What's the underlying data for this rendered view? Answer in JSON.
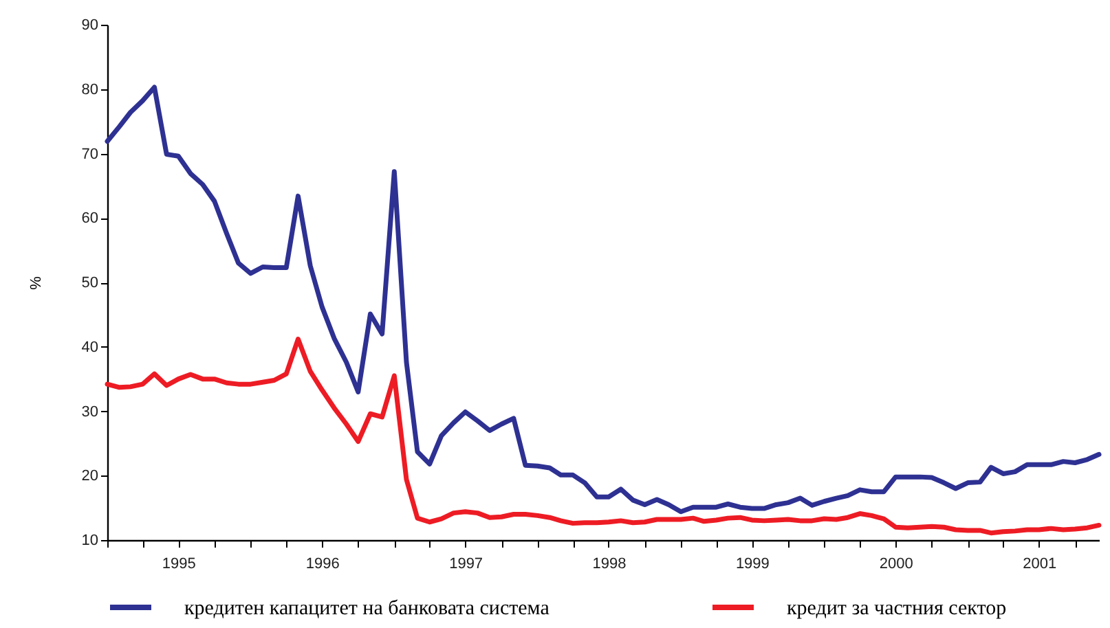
{
  "chart_data": {
    "type": "line",
    "ylabel": "%",
    "x": [
      "1995-01",
      "1995-02",
      "1995-03",
      "1995-04",
      "1995-05",
      "1995-06",
      "1995-07",
      "1995-08",
      "1995-09",
      "1995-10",
      "1995-11",
      "1995-12",
      "1996-01",
      "1996-02",
      "1996-03",
      "1996-04",
      "1996-05",
      "1996-06",
      "1996-07",
      "1996-08",
      "1996-09",
      "1996-10",
      "1996-11",
      "1996-12",
      "1997-01",
      "1997-02",
      "1997-03",
      "1997-04",
      "1997-05",
      "1997-06",
      "1997-07",
      "1997-08",
      "1997-09",
      "1997-10",
      "1997-11",
      "1997-12",
      "1998-01",
      "1998-02",
      "1998-03",
      "1998-04",
      "1998-05",
      "1998-06",
      "1998-07",
      "1998-08",
      "1998-09",
      "1998-10",
      "1998-11",
      "1998-12",
      "1999-01",
      "1999-02",
      "1999-03",
      "1999-04",
      "1999-05",
      "1999-06",
      "1999-07",
      "1999-08",
      "1999-09",
      "1999-10",
      "1999-11",
      "1999-12",
      "2000-01",
      "2000-02",
      "2000-03",
      "2000-04",
      "2000-05",
      "2000-06",
      "2000-07",
      "2000-08",
      "2000-09",
      "2000-10",
      "2000-11",
      "2000-12",
      "2001-01",
      "2001-02",
      "2001-03",
      "2001-04",
      "2001-05",
      "2001-06",
      "2001-07",
      "2001-08",
      "2001-09",
      "2001-10",
      "2001-11",
      "2001-12"
    ],
    "series": [
      {
        "name": "кредитен капацитет на банковата система",
        "color": "#2e3192",
        "values": [
          71.9,
          74.2,
          76.4,
          78.2,
          80.3,
          69.9,
          69.6,
          66.9,
          65.2,
          62.6,
          57.6,
          53.0,
          51.4,
          52.4,
          52.3,
          52.3,
          63.4,
          52.6,
          46.2,
          41.3,
          37.6,
          33.0,
          45.1,
          42.0,
          67.2,
          37.6,
          23.7,
          21.8,
          26.2,
          28.2,
          29.9,
          28.5,
          27.0,
          28.0,
          28.9,
          21.6,
          21.5,
          21.2,
          20.1,
          20.1,
          18.9,
          16.7,
          16.7,
          17.9,
          16.2,
          15.5,
          16.3,
          15.5,
          14.4,
          15.1,
          15.1,
          15.1,
          15.6,
          15.1,
          14.9,
          14.9,
          15.5,
          15.8,
          16.5,
          15.4,
          16.0,
          16.5,
          16.9,
          17.8,
          17.5,
          17.5,
          19.8,
          19.8,
          19.8,
          19.7,
          18.9,
          18.0,
          18.9,
          19.0,
          21.3,
          20.3,
          20.6,
          21.7,
          21.7,
          21.7,
          22.2,
          22.0,
          22.5,
          23.3
        ]
      },
      {
        "name": "кредит за частния сектор",
        "color": "#ed1c24",
        "values": [
          34.2,
          33.7,
          33.8,
          34.2,
          35.8,
          34.0,
          35.0,
          35.7,
          35.0,
          35.0,
          34.4,
          34.2,
          34.2,
          34.5,
          34.8,
          35.8,
          41.2,
          36.2,
          33.3,
          30.5,
          28.0,
          25.3,
          29.6,
          29.1,
          35.5,
          19.4,
          13.4,
          12.8,
          13.3,
          14.2,
          14.4,
          14.2,
          13.5,
          13.6,
          14.0,
          14.0,
          13.8,
          13.5,
          13.0,
          12.6,
          12.7,
          12.7,
          12.8,
          13.0,
          12.7,
          12.8,
          13.2,
          13.2,
          13.2,
          13.4,
          12.9,
          13.1,
          13.4,
          13.5,
          13.1,
          13.0,
          13.1,
          13.2,
          13.0,
          13.0,
          13.3,
          13.2,
          13.5,
          14.1,
          13.8,
          13.3,
          12.0,
          11.9,
          12.0,
          12.1,
          12.0,
          11.6,
          11.5,
          11.5,
          11.1,
          11.3,
          11.4,
          11.6,
          11.6,
          11.8,
          11.6,
          11.7,
          11.9,
          12.3
        ]
      }
    ],
    "xlim": [
      "1995-01",
      "2001-12"
    ],
    "xticks": [
      {
        "value": "1995-01",
        "label": null
      },
      {
        "value": "1995-04",
        "label": null
      },
      {
        "value": "1995-07",
        "label": "1995"
      },
      {
        "value": "1995-10",
        "label": null
      },
      {
        "value": "1996-01",
        "label": null
      },
      {
        "value": "1996-04",
        "label": null
      },
      {
        "value": "1996-07",
        "label": "1996"
      },
      {
        "value": "1996-10",
        "label": null
      },
      {
        "value": "1997-01",
        "label": null
      },
      {
        "value": "1997-04",
        "label": null
      },
      {
        "value": "1997-07",
        "label": "1997"
      },
      {
        "value": "1997-10",
        "label": null
      },
      {
        "value": "1998-01",
        "label": null
      },
      {
        "value": "1998-04",
        "label": null
      },
      {
        "value": "1998-07",
        "label": "1998"
      },
      {
        "value": "1998-10",
        "label": null
      },
      {
        "value": "1999-01",
        "label": null
      },
      {
        "value": "1999-04",
        "label": null
      },
      {
        "value": "1999-07",
        "label": "1999"
      },
      {
        "value": "1999-10",
        "label": null
      },
      {
        "value": "2000-01",
        "label": null
      },
      {
        "value": "2000-04",
        "label": null
      },
      {
        "value": "2000-07",
        "label": "2000"
      },
      {
        "value": "2000-10",
        "label": null
      },
      {
        "value": "2001-01",
        "label": null
      },
      {
        "value": "2001-04",
        "label": null
      },
      {
        "value": "2001-07",
        "label": "2001"
      },
      {
        "value": "2001-10",
        "label": null
      }
    ],
    "ylim": [
      10,
      90
    ],
    "yticks": [
      10,
      20,
      30,
      40,
      50,
      60,
      70,
      80,
      90
    ],
    "grid": false,
    "legend": "bottom",
    "line_style": "solid"
  }
}
